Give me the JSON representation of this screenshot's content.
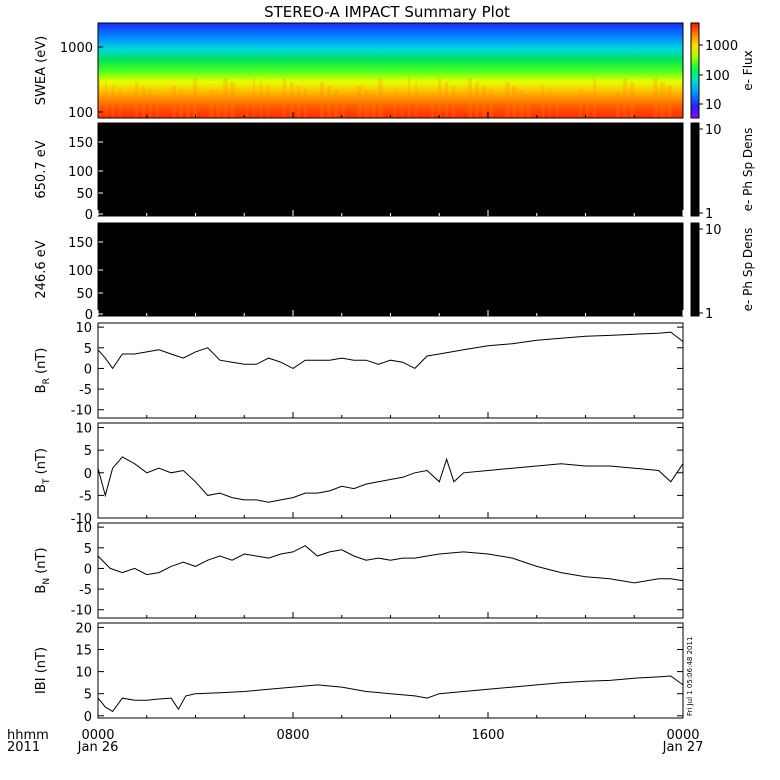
{
  "title": "STEREO-A IMPACT Summary Plot",
  "footer": {
    "left_top": "hhmm",
    "left_bottom": "2011",
    "start_label": "Jan 26",
    "end_label": "Jan 27",
    "side_stamp": "Fri Jul 1 05:06:48 2011"
  },
  "chart_data": [
    {
      "type": "heatmap",
      "ylabel": "SWEA (eV)",
      "y_scale": "log",
      "ylim": [
        100,
        2000
      ],
      "yticks": [
        "1000",
        "100"
      ],
      "colorbar": {
        "label": "e- Flux",
        "scale": "log",
        "ticks": [
          "1000",
          "100",
          "10"
        ]
      },
      "pattern": "high flux (red/orange) near 100-200 eV, green near 400-600 eV, blue near 1000-2000 eV"
    },
    {
      "type": "heatmap",
      "ylabel": "650.7 eV",
      "ylim": [
        0,
        180
      ],
      "yticks": [
        "150",
        "100",
        "50",
        "0"
      ],
      "colorbar": {
        "label": "e- Ph Sp Dens",
        "ticks": [
          "10",
          "1"
        ]
      },
      "fill": "#000000"
    },
    {
      "type": "heatmap",
      "ylabel": "246.6 eV",
      "ylim": [
        0,
        180
      ],
      "yticks": [
        "150",
        "100",
        "50",
        "0"
      ],
      "colorbar": {
        "label": "e- Ph Sp Dens",
        "ticks": [
          "10",
          "1"
        ]
      },
      "fill": "#000000"
    },
    {
      "type": "line",
      "ylabel": "B",
      "ylabel_sub": "R",
      "ylabel_unit": " (nT)",
      "ylim": [
        -12,
        11
      ],
      "yticks": [
        "10",
        "5",
        "0",
        "-5",
        "-10"
      ],
      "x": [
        0,
        0.3,
        0.6,
        1.0,
        1.5,
        2.0,
        2.5,
        3.0,
        3.5,
        4.0,
        4.5,
        5.0,
        5.5,
        6.0,
        6.5,
        7.0,
        7.5,
        8.0,
        8.5,
        9.0,
        9.5,
        10.0,
        10.5,
        11.0,
        11.5,
        12.0,
        12.5,
        13.0,
        13.5,
        14.0,
        14.5,
        15.0,
        16.0,
        17.0,
        18.0,
        19.0,
        20.0,
        21.0,
        22.0,
        23.0,
        23.5,
        24.0
      ],
      "y": [
        4.5,
        2.5,
        0.0,
        3.5,
        3.5,
        4.0,
        4.5,
        3.5,
        2.5,
        4.0,
        5.0,
        2.0,
        1.5,
        1.0,
        1.0,
        2.5,
        1.5,
        0.0,
        2.0,
        2.0,
        2.0,
        2.5,
        2.0,
        2.0,
        1.0,
        2.0,
        1.5,
        0.0,
        3.0,
        3.5,
        4.0,
        4.5,
        5.5,
        6.0,
        6.8,
        7.3,
        7.8,
        8.0,
        8.3,
        8.5,
        8.8,
        6.5
      ]
    },
    {
      "type": "line",
      "ylabel": "B",
      "ylabel_sub": "T",
      "ylabel_unit": " (nT)",
      "ylim": [
        -10,
        11
      ],
      "yticks": [
        "10",
        "5",
        "0",
        "-5",
        "-10"
      ],
      "x": [
        0,
        0.3,
        0.6,
        1.0,
        1.5,
        2.0,
        2.5,
        3.0,
        3.5,
        4.0,
        4.5,
        5.0,
        5.5,
        6.0,
        6.5,
        7.0,
        7.5,
        8.0,
        8.5,
        9.0,
        9.5,
        10.0,
        10.5,
        11.0,
        11.5,
        12.0,
        12.5,
        13.0,
        13.5,
        14.0,
        14.3,
        14.6,
        15.0,
        16.0,
        17.0,
        18.0,
        19.0,
        20.0,
        21.0,
        22.0,
        23.0,
        23.5,
        24.0
      ],
      "y": [
        1.0,
        -5.0,
        1.0,
        3.5,
        2.0,
        0.0,
        1.0,
        0.0,
        0.5,
        -2.0,
        -5.0,
        -4.5,
        -5.5,
        -6.0,
        -6.0,
        -6.5,
        -6.0,
        -5.5,
        -4.5,
        -4.5,
        -4.0,
        -3.0,
        -3.5,
        -2.5,
        -2.0,
        -1.5,
        -1.0,
        0.0,
        0.5,
        -2.0,
        3.0,
        -2.0,
        0.0,
        0.5,
        1.0,
        1.5,
        2.0,
        1.5,
        1.5,
        1.0,
        0.5,
        -2.0,
        2.0
      ]
    },
    {
      "type": "line",
      "ylabel": "B",
      "ylabel_sub": "N",
      "ylabel_unit": " (nT)",
      "ylim": [
        -12,
        11
      ],
      "yticks": [
        "10",
        "5",
        "0",
        "-5",
        "-10"
      ],
      "x": [
        0,
        0.5,
        1.0,
        1.5,
        2.0,
        2.5,
        3.0,
        3.5,
        4.0,
        4.5,
        5.0,
        5.5,
        6.0,
        6.5,
        7.0,
        7.5,
        8.0,
        8.5,
        9.0,
        9.5,
        10.0,
        10.5,
        11.0,
        11.5,
        12.0,
        12.5,
        13.0,
        13.5,
        14.0,
        15.0,
        16.0,
        17.0,
        18.0,
        19.0,
        20.0,
        21.0,
        22.0,
        23.0,
        23.5,
        24.0
      ],
      "y": [
        3.0,
        0.0,
        -1.0,
        0.0,
        -1.5,
        -1.0,
        0.5,
        1.5,
        0.5,
        2.0,
        3.0,
        2.0,
        3.5,
        3.0,
        2.5,
        3.5,
        4.0,
        5.5,
        3.0,
        4.0,
        4.5,
        3.0,
        2.0,
        2.5,
        2.0,
        2.5,
        2.5,
        3.0,
        3.5,
        4.0,
        3.5,
        2.5,
        0.5,
        -1.0,
        -2.0,
        -2.5,
        -3.5,
        -2.5,
        -2.5,
        -3.0
      ]
    },
    {
      "type": "line",
      "ylabel": "IBI",
      "ylabel_unit": " (nT)",
      "ylim": [
        -0.5,
        21
      ],
      "yticks": [
        "20",
        "15",
        "10",
        "5",
        "0"
      ],
      "x": [
        0,
        0.3,
        0.6,
        1.0,
        1.5,
        2.0,
        2.5,
        3.0,
        3.3,
        3.6,
        4.0,
        5.0,
        6.0,
        7.0,
        8.0,
        9.0,
        10.0,
        11.0,
        12.0,
        13.0,
        13.5,
        14.0,
        15.0,
        16.0,
        17.0,
        18.0,
        19.0,
        20.0,
        21.0,
        22.0,
        23.0,
        23.5,
        24.0
      ],
      "y": [
        4.0,
        2.0,
        1.0,
        4.0,
        3.5,
        3.5,
        3.8,
        4.0,
        1.5,
        4.5,
        5.0,
        5.2,
        5.5,
        6.0,
        6.5,
        7.0,
        6.5,
        5.5,
        5.0,
        4.5,
        4.0,
        5.0,
        5.5,
        6.0,
        6.5,
        7.0,
        7.5,
        7.8,
        8.0,
        8.5,
        8.8,
        9.0,
        7.0
      ]
    }
  ],
  "x_axis": {
    "range_hours": [
      0,
      24
    ],
    "tick_labels": [
      "0000",
      "0800",
      "1600",
      "0000"
    ]
  }
}
